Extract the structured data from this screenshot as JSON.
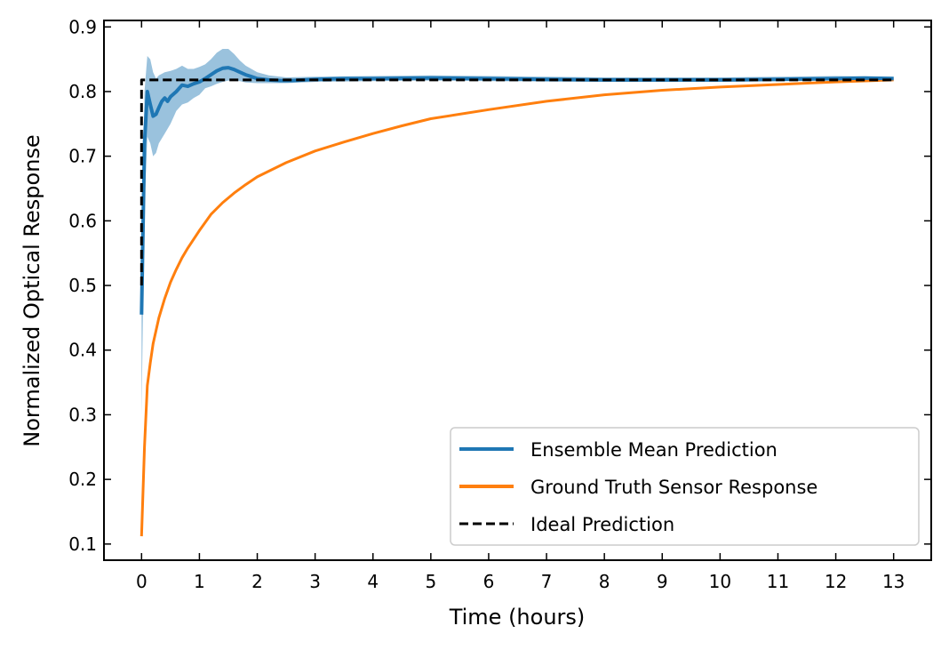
{
  "chart_data": {
    "type": "line",
    "xlabel": "Time (hours)",
    "ylabel": "Normalized Optical Response",
    "xlim": [
      -0.65,
      13.65
    ],
    "ylim": [
      0.075,
      0.91
    ],
    "xticks": [
      0,
      1,
      2,
      3,
      4,
      5,
      6,
      7,
      8,
      9,
      10,
      11,
      12,
      13
    ],
    "yticks": [
      0.1,
      0.2,
      0.3,
      0.4,
      0.5,
      0.6,
      0.7,
      0.8,
      0.9
    ],
    "grid": false,
    "tick_direction": "in",
    "legend": {
      "position": "lower-right"
    },
    "series": [
      {
        "name": "Ensemble Mean Prediction",
        "color": "#1f77b4",
        "style": "solid",
        "x": [
          0,
          0.05,
          0.1,
          0.15,
          0.2,
          0.25,
          0.3,
          0.35,
          0.4,
          0.45,
          0.5,
          0.6,
          0.7,
          0.8,
          0.9,
          1.0,
          1.1,
          1.2,
          1.3,
          1.4,
          1.5,
          1.6,
          1.7,
          1.8,
          1.9,
          2.0,
          2.2,
          2.4,
          2.6,
          2.8,
          3.0,
          3.5,
          4.0,
          5.0,
          6.0,
          7.0,
          8.0,
          9.0,
          10.0,
          11.0,
          12.0,
          12.5,
          13.0
        ],
        "y": [
          0.455,
          0.72,
          0.8,
          0.78,
          0.762,
          0.765,
          0.775,
          0.785,
          0.79,
          0.785,
          0.792,
          0.8,
          0.81,
          0.808,
          0.812,
          0.815,
          0.82,
          0.826,
          0.832,
          0.836,
          0.837,
          0.834,
          0.83,
          0.826,
          0.823,
          0.82,
          0.818,
          0.817,
          0.817,
          0.818,
          0.819,
          0.82,
          0.82,
          0.821,
          0.82,
          0.819,
          0.818,
          0.818,
          0.818,
          0.819,
          0.82,
          0.821,
          0.82
        ]
      },
      {
        "name": "Ground Truth Sensor Response",
        "color": "#ff7f0e",
        "style": "solid",
        "x": [
          0.0,
          0.05,
          0.1,
          0.15,
          0.2,
          0.3,
          0.4,
          0.5,
          0.6,
          0.7,
          0.8,
          1.0,
          1.2,
          1.4,
          1.6,
          1.8,
          2.0,
          2.5,
          3.0,
          3.5,
          4.0,
          4.5,
          5.0,
          6.0,
          7.0,
          8.0,
          9.0,
          10.0,
          11.0,
          12.0,
          13.0
        ],
        "y": [
          0.112,
          0.25,
          0.345,
          0.38,
          0.41,
          0.45,
          0.48,
          0.505,
          0.525,
          0.543,
          0.558,
          0.585,
          0.61,
          0.628,
          0.643,
          0.656,
          0.668,
          0.69,
          0.708,
          0.722,
          0.735,
          0.747,
          0.758,
          0.772,
          0.785,
          0.795,
          0.802,
          0.807,
          0.811,
          0.815,
          0.818
        ]
      },
      {
        "name": "Ideal Prediction",
        "color": "#000000",
        "style": "dashed",
        "x": [
          0,
          0,
          13
        ],
        "y": [
          0.5,
          0.818,
          0.818
        ]
      }
    ],
    "bands": [
      {
        "series": "Ensemble Mean Prediction",
        "color": "#1f77b4",
        "opacity": 0.45,
        "x": [
          0.0,
          0.05,
          0.1,
          0.15,
          0.2,
          0.25,
          0.3,
          0.4,
          0.5,
          0.6,
          0.7,
          0.8,
          0.9,
          1.0,
          1.1,
          1.2,
          1.3,
          1.4,
          1.5,
          1.6,
          1.7,
          1.8,
          2.0,
          2.2,
          2.5,
          3.0,
          4.0,
          5.0,
          6.0,
          8.0,
          10.0,
          12.0,
          13.0
        ],
        "lower": [
          0.3,
          0.62,
          0.73,
          0.72,
          0.7,
          0.705,
          0.72,
          0.735,
          0.75,
          0.77,
          0.78,
          0.783,
          0.79,
          0.795,
          0.805,
          0.808,
          0.812,
          0.815,
          0.817,
          0.817,
          0.816,
          0.814,
          0.813,
          0.813,
          0.813,
          0.815,
          0.816,
          0.817,
          0.816,
          0.815,
          0.815,
          0.817,
          0.817
        ],
        "upper": [
          0.5,
          0.8,
          0.855,
          0.85,
          0.83,
          0.82,
          0.825,
          0.83,
          0.832,
          0.835,
          0.84,
          0.835,
          0.835,
          0.838,
          0.842,
          0.85,
          0.86,
          0.866,
          0.866,
          0.858,
          0.848,
          0.84,
          0.83,
          0.825,
          0.822,
          0.823,
          0.824,
          0.825,
          0.824,
          0.822,
          0.822,
          0.824,
          0.823
        ]
      }
    ]
  }
}
